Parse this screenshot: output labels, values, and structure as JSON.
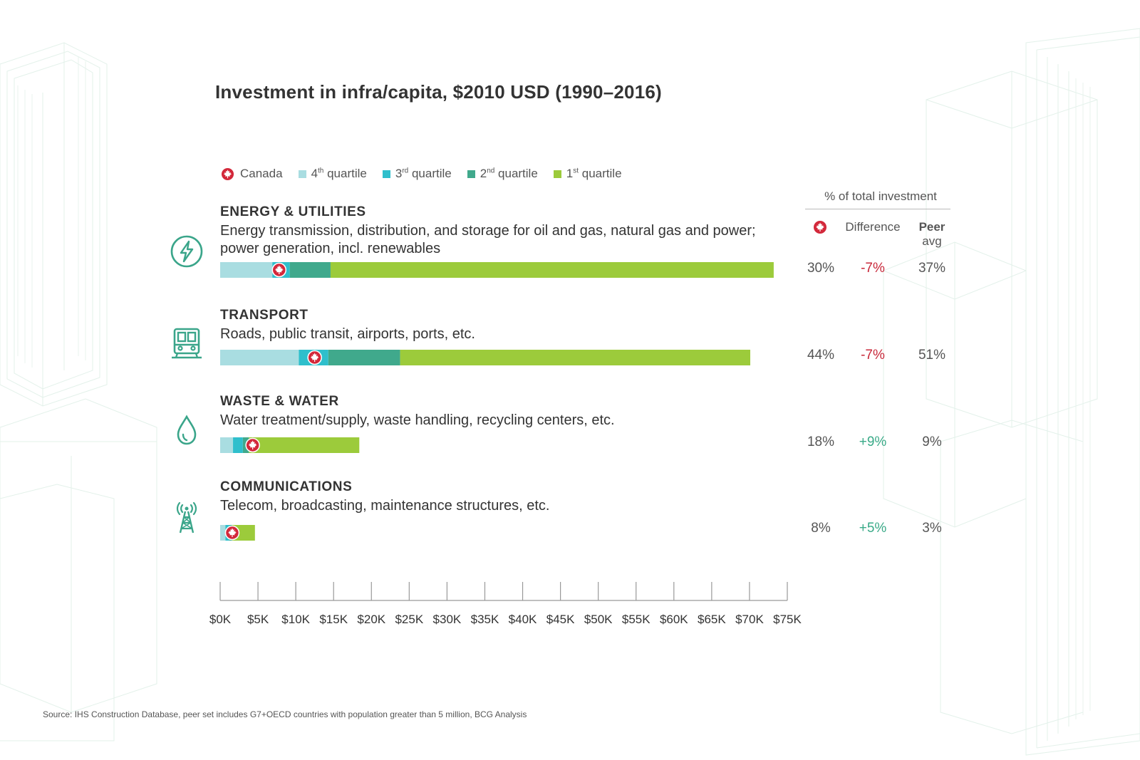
{
  "title": "Investment in infra/capita, $2010 USD (1990–2016)",
  "legend": {
    "canada": "Canada",
    "q4": {
      "num": "4",
      "sup": "th",
      "text": " quartile"
    },
    "q3": {
      "num": "3",
      "sup": "rd",
      "text": " quartile"
    },
    "q2": {
      "num": "2",
      "sup": "nd",
      "text": " quartile"
    },
    "q1": {
      "num": "1",
      "sup": "st",
      "text": " quartile"
    }
  },
  "colors": {
    "q4": "#a9dde1",
    "q3": "#2fbfcc",
    "q2": "#40a98c",
    "q1": "#9ccb3b",
    "canada": "#d3283a",
    "icon": "#3aa58a",
    "negative": "#c8283a",
    "positive": "#3aaa88"
  },
  "table": {
    "header": "% of total investment",
    "difference": "Difference",
    "peer_avg": "Peer",
    "peer_avg2": "avg"
  },
  "categories": [
    {
      "title": "ENERGY & UTILITIES",
      "desc": "Energy transmission, distribution, and storage for oil and gas, natural gas and power; power generation, incl. renewables",
      "icon": "lightning-bolt-icon",
      "share": "30%",
      "diff": "-7%",
      "peer": "37%"
    },
    {
      "title": "TRANSPORT",
      "desc": "Roads, public transit, airports, ports, etc.",
      "icon": "train-icon",
      "share": "44%",
      "diff": "-7%",
      "peer": "51%"
    },
    {
      "title": "WASTE & WATER",
      "desc": "Water treatment/supply, waste handling, recycling centers, etc.",
      "icon": "water-drop-icon",
      "share": "18%",
      "diff": "+9%",
      "peer": "9%"
    },
    {
      "title": "COMMUNICATIONS",
      "desc": "Telecom, broadcasting, maintenance structures, etc.",
      "icon": "antenna-tower-icon",
      "share": "8%",
      "diff": "+5%",
      "peer": "3%"
    }
  ],
  "chart_data": {
    "type": "bar",
    "title": "Investment in infra/capita, $2010 USD (1990–2016)",
    "orientation": "horizontal-stacked",
    "categories": [
      "ENERGY & UTILITIES",
      "TRANSPORT",
      "WASTE & WATER",
      "COMMUNICATIONS"
    ],
    "series": [
      {
        "name": "4th quartile",
        "values": [
          6900,
          10400,
          1700,
          700
        ]
      },
      {
        "name": "3rd quartile",
        "values": [
          2300,
          3900,
          1300,
          500
        ]
      },
      {
        "name": "2nd quartile",
        "values": [
          5400,
          9500,
          800,
          400
        ]
      },
      {
        "name": "1st quartile",
        "values": [
          58600,
          46300,
          14600,
          3000
        ]
      },
      {
        "name": "Canada",
        "type": "marker",
        "values": [
          7800,
          12500,
          4300,
          1600
        ]
      }
    ],
    "xlim": [
      0,
      75000
    ],
    "xticks": [
      "$0K",
      "$5K",
      "$10K",
      "$15K",
      "$20K",
      "$25K",
      "$30K",
      "$35K",
      "$40K",
      "$45K",
      "$50K",
      "$55K",
      "$60K",
      "$65K",
      "$70K",
      "$75K"
    ],
    "tick_step": 5000
  },
  "source": "Source: IHS Construction Database, peer set includes G7+OECD countries with population greater than 5 million, BCG Analysis"
}
